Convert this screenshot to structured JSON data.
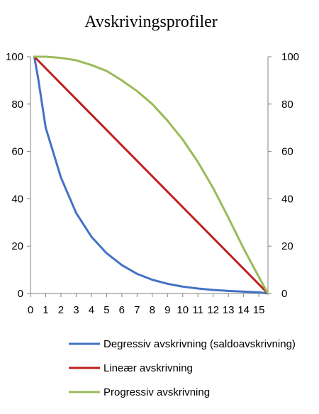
{
  "chart_data": {
    "type": "line",
    "title": "Avskrivingsprofiler",
    "xlabel": "",
    "ylabel": "",
    "xlim": [
      0,
      15.6
    ],
    "ylim": [
      0,
      100
    ],
    "x_ticks": [
      0,
      1,
      2,
      3,
      4,
      5,
      6,
      7,
      8,
      9,
      10,
      11,
      12,
      13,
      14,
      15
    ],
    "y_ticks": [
      0,
      20,
      40,
      60,
      80,
      100
    ],
    "grid": false,
    "legend_position": "bottom",
    "series": [
      {
        "name": "Degressiv avskrivning (saldoavskrivning)",
        "color": "#4472C4",
        "x": [
          0.25,
          0.5,
          1,
          2,
          3,
          4,
          5,
          6,
          7,
          8,
          9,
          10,
          11,
          12,
          13,
          14,
          15,
          15.6
        ],
        "y": [
          100,
          91,
          70,
          49,
          34,
          24,
          17,
          12,
          8.3,
          5.8,
          4.1,
          2.9,
          2.1,
          1.5,
          1.1,
          0.8,
          0.5,
          0
        ]
      },
      {
        "name": "Lineær avskrivning",
        "color": "#C0201F",
        "x": [
          0.25,
          15.6
        ],
        "y": [
          100,
          0
        ]
      },
      {
        "name": "Progressiv avskrivning",
        "color": "#9BBB59",
        "x": [
          0.25,
          1,
          2,
          3,
          4,
          5,
          6,
          7,
          8,
          9,
          10,
          11,
          12,
          13,
          14,
          15,
          15.6
        ],
        "y": [
          100,
          100,
          99.5,
          98.5,
          96.5,
          94,
          90,
          85.5,
          80,
          73,
          65,
          55.5,
          44.5,
          32,
          19,
          7,
          0
        ]
      }
    ]
  }
}
